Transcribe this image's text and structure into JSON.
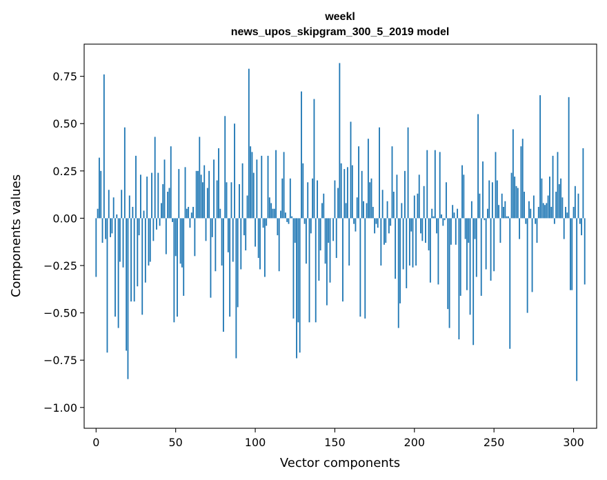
{
  "chart_data": {
    "type": "bar",
    "title_line1": "weekl",
    "title_line2": "news_upos_skipgram_300_5_2019 model",
    "xlabel": "Vector components",
    "ylabel": "Components values",
    "xlim": [
      -7.5,
      314.5
    ],
    "ylim": [
      -1.11,
      0.92
    ],
    "xticks": [
      0,
      50,
      100,
      150,
      200,
      250,
      300
    ],
    "xtick_labels": [
      "0",
      "50",
      "100",
      "150",
      "200",
      "250",
      "300"
    ],
    "yticks": [
      0.75,
      0.5,
      0.25,
      0.0,
      -0.25,
      -0.5,
      -0.75,
      -1.0
    ],
    "ytick_labels": [
      "0.75",
      "0.50",
      "0.25",
      "0.00",
      "−0.25",
      "−0.50",
      "−0.75",
      "−1.00"
    ],
    "bar_color": "#1f77b4",
    "values": [
      -0.31,
      0.05,
      0.32,
      0.25,
      -0.13,
      0.76,
      -0.11,
      -0.71,
      0.15,
      -0.1,
      -0.08,
      0.11,
      -0.52,
      0.02,
      -0.58,
      -0.23,
      0.15,
      -0.26,
      0.48,
      -0.7,
      -0.85,
      0.12,
      -0.44,
      0.06,
      -0.44,
      0.33,
      -0.36,
      -0.09,
      0.23,
      -0.51,
      0.04,
      -0.34,
      0.22,
      -0.25,
      -0.23,
      0.24,
      -0.12,
      0.43,
      -0.06,
      0.24,
      -0.04,
      0.08,
      0.18,
      0.31,
      -0.19,
      0.14,
      0.16,
      0.38,
      -0.02,
      -0.55,
      -0.2,
      -0.52,
      0.26,
      -0.24,
      -0.26,
      -0.41,
      0.27,
      0.05,
      0.06,
      -0.05,
      0.03,
      0.06,
      -0.2,
      0.25,
      0.25,
      0.43,
      0.23,
      0.19,
      0.28,
      -0.12,
      0.16,
      0.25,
      -0.42,
      -0.1,
      0.31,
      -0.28,
      0.2,
      0.37,
      0.05,
      -0.25,
      -0.6,
      0.54,
      0.19,
      -0.18,
      -0.52,
      0.19,
      -0.23,
      0.5,
      -0.74,
      -0.47,
      0.18,
      -0.27,
      0.29,
      -0.09,
      -0.17,
      0.12,
      0.79,
      0.38,
      0.35,
      0.24,
      -0.15,
      0.31,
      -0.21,
      -0.27,
      0.33,
      -0.05,
      -0.31,
      -0.04,
      0.33,
      0.11,
      0.08,
      0.05,
      0.05,
      0.36,
      -0.09,
      -0.28,
      0.04,
      0.21,
      0.35,
      0.03,
      -0.02,
      -0.03,
      0.21,
      0.01,
      -0.53,
      -0.13,
      -0.74,
      -0.55,
      -0.71,
      0.67,
      0.29,
      -0.03,
      -0.24,
      0.19,
      -0.55,
      -0.08,
      0.21,
      0.63,
      -0.55,
      0.2,
      -0.33,
      -0.17,
      0.08,
      0.13,
      -0.24,
      -0.46,
      -0.13,
      -0.34,
      0.0,
      -0.12,
      0.2,
      -0.21,
      0.16,
      0.82,
      0.29,
      -0.44,
      0.26,
      0.08,
      0.27,
      -0.25,
      0.51,
      0.28,
      -0.03,
      -0.07,
      0.11,
      0.38,
      -0.52,
      0.25,
      0.09,
      -0.53,
      0.08,
      0.42,
      0.19,
      0.21,
      0.06,
      -0.08,
      -0.03,
      -0.05,
      0.48,
      -0.25,
      0.15,
      -0.14,
      -0.13,
      0.09,
      -0.08,
      -0.04,
      0.38,
      0.14,
      -0.32,
      0.23,
      -0.58,
      -0.45,
      0.08,
      -0.27,
      0.25,
      -0.37,
      0.48,
      -0.25,
      -0.07,
      -0.26,
      0.12,
      -0.25,
      0.13,
      0.23,
      -0.08,
      -0.12,
      0.17,
      -0.13,
      0.36,
      -0.17,
      -0.34,
      0.05,
      0.01,
      0.36,
      -0.08,
      -0.35,
      0.35,
      0.02,
      -0.04,
      -0.01,
      0.19,
      -0.48,
      -0.58,
      -0.14,
      0.07,
      0.03,
      -0.14,
      0.05,
      -0.64,
      -0.41,
      0.28,
      0.23,
      -0.11,
      -0.38,
      -0.13,
      -0.51,
      0.09,
      -0.67,
      -0.11,
      -0.31,
      0.55,
      0.13,
      -0.41,
      0.3,
      -0.01,
      -0.27,
      0.05,
      0.2,
      -0.33,
      0.19,
      -0.28,
      0.35,
      0.2,
      0.07,
      -0.13,
      0.13,
      0.06,
      0.09,
      0.01,
      0.01,
      -0.69,
      0.24,
      0.47,
      0.22,
      0.17,
      0.16,
      -0.11,
      0.38,
      0.42,
      0.14,
      -0.03,
      -0.5,
      0.09,
      0.05,
      -0.39,
      0.12,
      -0.03,
      -0.13,
      0.06,
      0.65,
      0.21,
      0.08,
      0.07,
      0.08,
      0.12,
      0.22,
      0.06,
      0.33,
      -0.03,
      0.14,
      0.35,
      0.18,
      0.21,
      0.11,
      -0.11,
      0.06,
      0.03,
      0.64,
      -0.38,
      -0.38,
      0.06,
      0.17,
      -0.86,
      0.13,
      -0.03,
      -0.09,
      0.37,
      -0.35
    ]
  }
}
